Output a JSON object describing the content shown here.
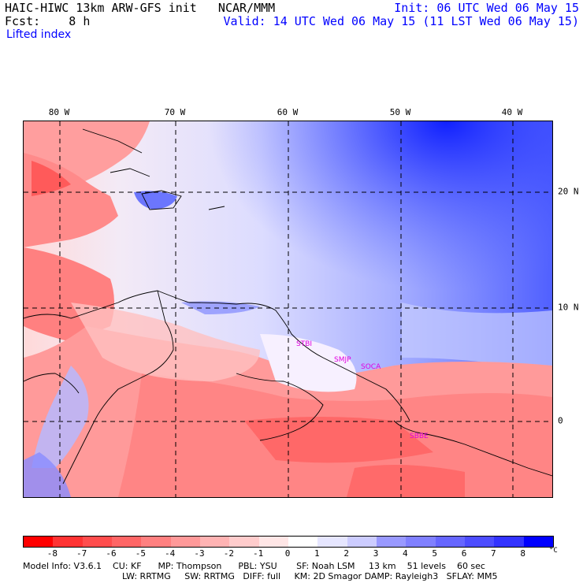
{
  "header": {
    "title_left": "HAIC-HIWC 13km ARW-GFS init   NCAR/MMM",
    "fcst_left": "Fcst:    8 h",
    "init_right": "Init: 06 UTC Wed 06 May 15",
    "valid_right": "Valid: 14 UTC Wed 06 May 15 (11 LST Wed 06 May 15)",
    "field_name": "Lifted index"
  },
  "map": {
    "lon_labels": [
      "80 W",
      "70 W",
      "60 W",
      "50 W",
      "40 W"
    ],
    "lat_labels": [
      "20 N",
      "10 N",
      "0"
    ],
    "stations": [
      "STBI",
      "SMJP",
      "SOCA",
      "SBBE"
    ]
  },
  "colorbar": {
    "ticks": [
      "-8",
      "-7",
      "-6",
      "-5",
      "-4",
      "-3",
      "-2",
      "-1",
      "0",
      "1",
      "2",
      "3",
      "4",
      "5",
      "6",
      "7",
      "8"
    ],
    "unit": "°C",
    "colors": [
      "#ff0000",
      "#ff3333",
      "#ff4d4d",
      "#ff6666",
      "#ff8080",
      "#ff9999",
      "#ffb3b3",
      "#ffcccc",
      "#ffe6e6",
      "#ffffff",
      "#e6e6ff",
      "#ccccff",
      "#9999ff",
      "#8080ff",
      "#6666ff",
      "#4d4dff",
      "#3333ff",
      "#0000ff"
    ]
  },
  "footer": {
    "line1": "Model Info: V3.6.1    CU: KF      MP: Thompson      PBL: YSU       SF: Noah LSM     13 km    51 levels    60 sec",
    "line2": "LW: RRTMG     SW: RRTMG   DIFF: full     KM: 2D Smagor DAMP: Rayleigh3   SFLAY: MM5"
  }
}
